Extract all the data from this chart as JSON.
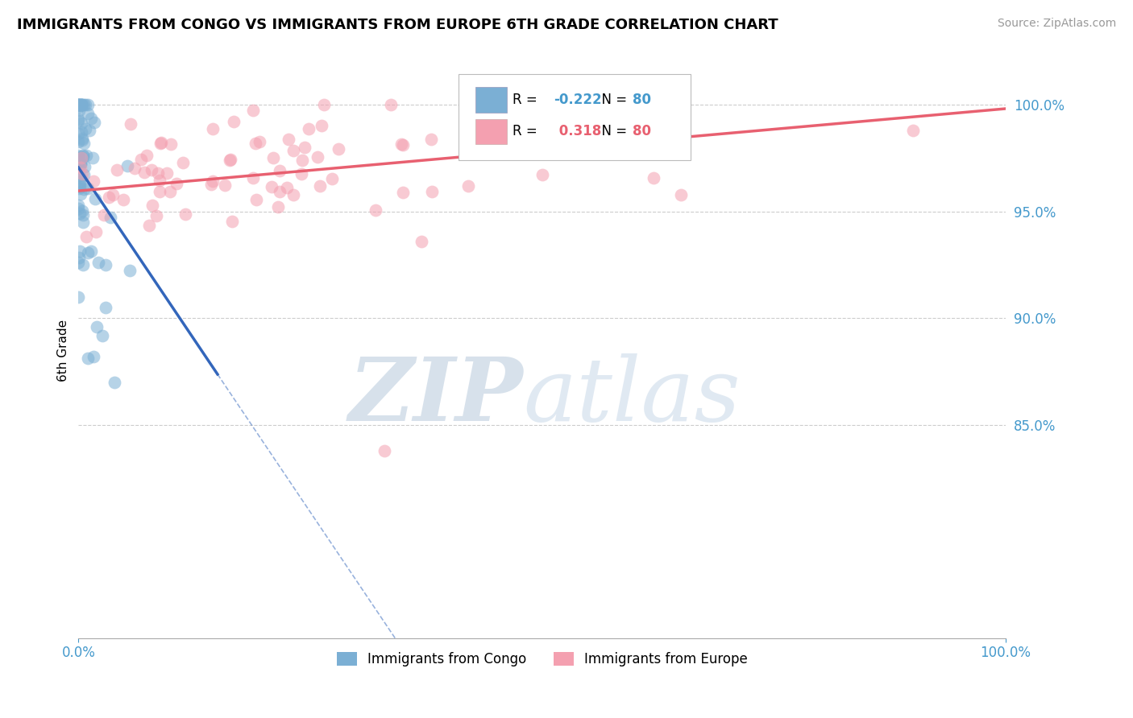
{
  "title": "IMMIGRANTS FROM CONGO VS IMMIGRANTS FROM EUROPE 6TH GRADE CORRELATION CHART",
  "source": "Source: ZipAtlas.com",
  "xlabel_bottom": "Immigrants from Congo",
  "xlabel_bottom2": "Immigrants from Europe",
  "ylabel": "6th Grade",
  "R_congo": -0.222,
  "N_congo": 80,
  "R_europe": 0.318,
  "N_europe": 80,
  "congo_color": "#7BAFD4",
  "europe_color": "#F4A0B0",
  "congo_line_color": "#3366BB",
  "europe_line_color": "#E86070",
  "title_fontsize": 13,
  "source_fontsize": 10,
  "tick_label_color": "#4499CC",
  "xlim": [
    0.0,
    1.0
  ],
  "ylim": [
    0.75,
    1.02
  ],
  "yticks": [
    0.85,
    0.9,
    0.95,
    1.0
  ],
  "ytick_labels": [
    "85.0%",
    "90.0%",
    "95.0%",
    "100.0%"
  ],
  "xticks": [
    0.0,
    1.0
  ],
  "xtick_labels": [
    "0.0%",
    "100.0%"
  ]
}
